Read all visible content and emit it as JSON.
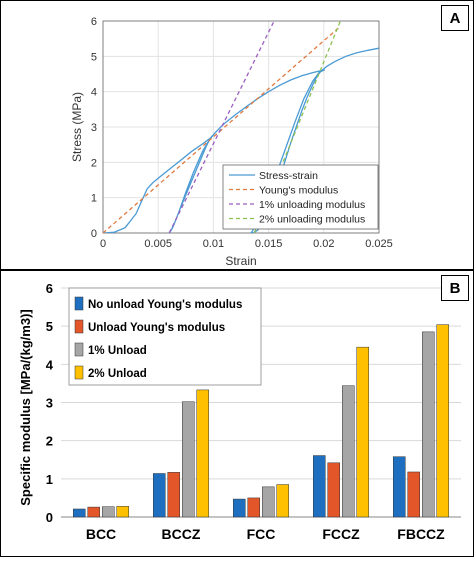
{
  "chart_data": [
    {
      "panel_label": "A",
      "type": "line",
      "xlabel": "Strain",
      "ylabel": "Stress (MPa)",
      "xlim": [
        0,
        0.025
      ],
      "ylim": [
        0,
        6
      ],
      "xticks": [
        0,
        0.005,
        0.01,
        0.015,
        0.02,
        0.025
      ],
      "xtick_labels": [
        "0",
        "0.005",
        "0.01",
        "0.015",
        "0.02",
        "0.025"
      ],
      "yticks": [
        0,
        1,
        2,
        3,
        4,
        5,
        6
      ],
      "ytick_labels": [
        "0",
        "1",
        "2",
        "3",
        "4",
        "5",
        "6"
      ],
      "grid": true,
      "legend_position": "bottom-right",
      "series": [
        {
          "name": "Stress-strain",
          "color": "#4a9ad4",
          "style": "solid",
          "x": [
            0,
            0.001,
            0.002,
            0.003,
            0.0035,
            0.004,
            0.0045,
            0.005,
            0.006,
            0.007,
            0.008,
            0.009,
            0.0097,
            0.01,
            0.0102,
            0.0105,
            0.011,
            0.012,
            0.013,
            0.014,
            0.015,
            0.016,
            0.017,
            0.018,
            0.019,
            0.0198,
            0.0203,
            0.021,
            0.022,
            0.023,
            0.024,
            0.025
          ],
          "y": [
            0,
            0.02,
            0.15,
            0.55,
            0.9,
            1.25,
            1.42,
            1.55,
            1.8,
            2.05,
            2.3,
            2.52,
            2.68,
            2.78,
            2.85,
            2.95,
            3.1,
            3.35,
            3.58,
            3.8,
            4.0,
            4.18,
            4.33,
            4.45,
            4.54,
            4.6,
            4.72,
            4.85,
            5.0,
            5.1,
            5.17,
            5.23
          ]
        },
        {
          "name": "",
          "color": "#4a9ad4",
          "style": "solid",
          "x": [
            0.0097,
            0.0093,
            0.0088,
            0.0082,
            0.0076,
            0.007,
            0.0066,
            0.0063,
            0.0061,
            0.006,
            0.0061,
            0.0064,
            0.0069,
            0.0075,
            0.0082,
            0.009,
            0.0096,
            0.01
          ],
          "y": [
            2.68,
            2.42,
            2.05,
            1.6,
            1.15,
            0.7,
            0.38,
            0.15,
            0.04,
            0,
            0.04,
            0.22,
            0.62,
            1.15,
            1.72,
            2.3,
            2.62,
            2.78
          ]
        },
        {
          "name": "",
          "color": "#4a9ad4",
          "style": "solid",
          "x": [
            0.0198,
            0.0194,
            0.019,
            0.0185,
            0.018,
            0.0175,
            0.017,
            0.0165,
            0.016,
            0.0155,
            0.015,
            0.0145,
            0.014,
            0.0137,
            0.0135,
            0.0134,
            0.0135,
            0.0138,
            0.0143,
            0.015,
            0.0158,
            0.0166,
            0.0174,
            0.0182,
            0.019,
            0.0196,
            0.0201
          ],
          "y": [
            4.6,
            4.45,
            4.2,
            3.85,
            3.45,
            3.0,
            2.55,
            2.05,
            1.55,
            1.05,
            0.6,
            0.28,
            0.08,
            0.02,
            0,
            0,
            0.04,
            0.2,
            0.55,
            1.1,
            1.75,
            2.45,
            3.15,
            3.8,
            4.3,
            4.55,
            4.62
          ]
        },
        {
          "name": "Young's modulus",
          "color": "#e07a3f",
          "style": "dashed",
          "x": [
            0,
            0.0215
          ],
          "y": [
            0,
            5.85
          ]
        },
        {
          "name": "1% unloading modulus",
          "color": "#9a5fc0",
          "style": "dashed",
          "x": [
            0.006,
            0.0155
          ],
          "y": [
            0,
            6.0
          ]
        },
        {
          "name": "2% unloading modulus",
          "color": "#8cc152",
          "style": "dashed",
          "x": [
            0.0137,
            0.0215
          ],
          "y": [
            0,
            6.0
          ]
        }
      ]
    },
    {
      "panel_label": "B",
      "type": "bar",
      "ylabel": "Specific modulus [MPa/(kg/m3)]",
      "ylim": [
        0,
        6
      ],
      "yticks": [
        0,
        1,
        2,
        3,
        4,
        5,
        6
      ],
      "ytick_labels": [
        "0",
        "1",
        "2",
        "3",
        "4",
        "5",
        "6"
      ],
      "grid": true,
      "legend_position": "top-left",
      "categories": [
        "BCC",
        "BCCZ",
        "FCC",
        "FCCZ",
        "FBCCZ"
      ],
      "series": [
        {
          "name": "No unload Young's modulus",
          "color": "#1f6fc0",
          "values": [
            0.21,
            1.14,
            0.47,
            1.61,
            1.58
          ]
        },
        {
          "name": "Unload Young's modulus",
          "color": "#e2562a",
          "values": [
            0.26,
            1.17,
            0.5,
            1.42,
            1.18
          ]
        },
        {
          "name": "1% Unload",
          "color": "#a6a6a6",
          "values": [
            0.27,
            3.02,
            0.79,
            3.44,
            4.85
          ]
        },
        {
          "name": "2% Unload",
          "color": "#ffc000",
          "values": [
            0.28,
            3.33,
            0.85,
            4.45,
            5.04
          ]
        }
      ]
    }
  ]
}
